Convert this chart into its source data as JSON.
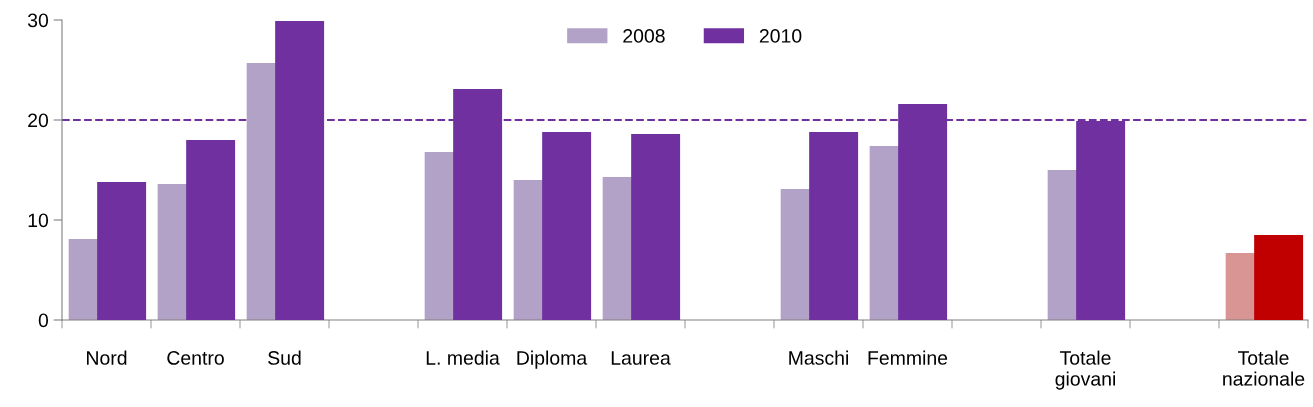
{
  "chart_data": {
    "type": "bar",
    "categories": [
      "Nord",
      "Centro",
      "Sud",
      null,
      "L. media",
      "Diploma",
      "Laurea",
      null,
      "Maschi",
      "Femmine",
      null,
      "Totale\ngiovani",
      null,
      "Totale\nnazionale"
    ],
    "series": [
      {
        "name": "2008",
        "color": "#b3a2c7",
        "colors": [
          "#b3a2c7",
          "#b3a2c7",
          "#b3a2c7",
          "#b3a2c7",
          "#b3a2c7",
          "#b3a2c7",
          "#b3a2c7",
          "#b3a2c7",
          "#b3a2c7",
          "#b3a2c7",
          "#b3a2c7",
          "#b3a2c7",
          "#b3a2c7",
          "#d99594"
        ],
        "values": [
          8.1,
          13.6,
          25.7,
          null,
          16.8,
          14.0,
          14.3,
          null,
          13.1,
          17.4,
          null,
          15.0,
          null,
          6.7
        ]
      },
      {
        "name": "2010",
        "color": "#7030a0",
        "colors": [
          "#7030a0",
          "#7030a0",
          "#7030a0",
          "#7030a0",
          "#7030a0",
          "#7030a0",
          "#7030a0",
          "#7030a0",
          "#7030a0",
          "#7030a0",
          "#7030a0",
          "#7030a0",
          "#7030a0",
          "#c00000"
        ],
        "values": [
          13.8,
          18.0,
          29.9,
          null,
          23.1,
          18.8,
          18.6,
          null,
          18.8,
          21.6,
          null,
          19.9,
          null,
          8.5
        ]
      }
    ],
    "ylim": [
      0,
      30
    ],
    "yticks": [
      0,
      10,
      20,
      30
    ],
    "ref_lines": [
      {
        "axis": "y",
        "value": 20,
        "color": "#7030a0",
        "line_style": "dashed"
      }
    ],
    "legend": "top",
    "grid": false
  }
}
